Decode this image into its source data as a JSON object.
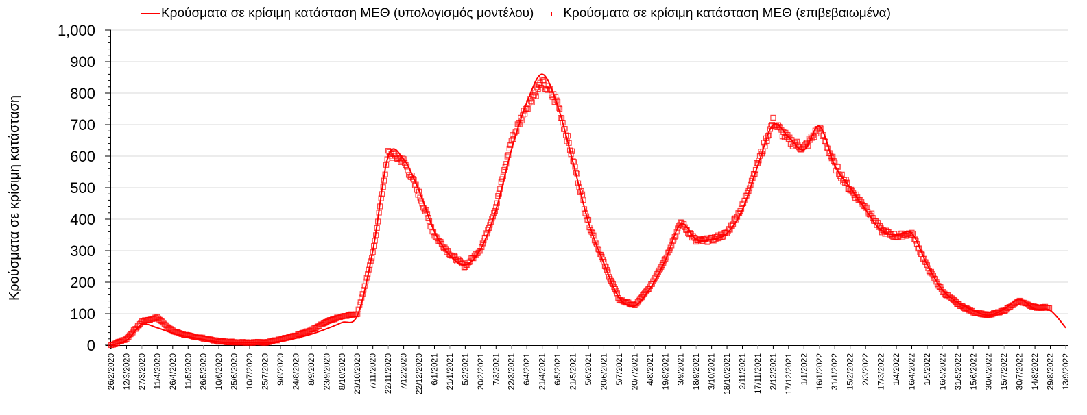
{
  "chart_data": {
    "type": "line",
    "title": "",
    "xlabel": "",
    "ylabel": "Κρούσματα σε κρίσιμη κατάσταση",
    "ylim": [
      0,
      1000
    ],
    "yticks": [
      "0",
      "100",
      "200",
      "300",
      "400",
      "500",
      "600",
      "700",
      "800",
      "900",
      "1,000"
    ],
    "ytick_values": [
      0,
      100,
      200,
      300,
      400,
      500,
      600,
      700,
      800,
      900,
      1000
    ],
    "grid": "horizontal",
    "legend_position": "top",
    "categories": [
      "26/2/2020",
      "12/3/2020",
      "27/3/2020",
      "11/4/2020",
      "26/4/2020",
      "11/5/2020",
      "26/5/2020",
      "10/6/2020",
      "25/6/2020",
      "10/7/2020",
      "25/7/2020",
      "9/8/2020",
      "24/8/2020",
      "8/9/2020",
      "23/9/2020",
      "8/10/2020",
      "23/10/2020",
      "7/11/2020",
      "22/11/2020",
      "7/12/2020",
      "22/12/2020",
      "6/1/2021",
      "21/1/2021",
      "5/2/2021",
      "20/2/2021",
      "7/3/2021",
      "22/3/2021",
      "6/4/2021",
      "21/4/2021",
      "6/5/2021",
      "21/5/2021",
      "5/6/2021",
      "20/6/2021",
      "5/7/2021",
      "20/7/2021",
      "4/8/2021",
      "19/8/2021",
      "3/9/2021",
      "18/9/2021",
      "3/10/2021",
      "18/10/2021",
      "2/11/2021",
      "17/11/2021",
      "2/12/2021",
      "17/12/2021",
      "1/1/2022",
      "16/1/2022",
      "31/1/2022",
      "15/2/2022",
      "2/3/2022",
      "17/3/2022",
      "1/4/2022",
      "16/4/2022",
      "1/5/2022",
      "16/5/2022",
      "31/5/2022",
      "15/6/2022",
      "30/6/2022",
      "15/7/2022",
      "30/7/2022",
      "14/8/2022",
      "29/8/2022",
      "13/9/2022"
    ],
    "series": [
      {
        "name": "Κρούσματα σε κρίσιμη κατάσταση ΜΕΘ (υπολογισμός μοντέλου)",
        "style": "line",
        "color": "#ff0000",
        "values": [
          0,
          15,
          65,
          55,
          38,
          27,
          18,
          10,
          7,
          8,
          7,
          12,
          22,
          35,
          52,
          72,
          95,
          300,
          600,
          590,
          490,
          360,
          285,
          255,
          305,
          430,
          620,
          770,
          860,
          760,
          580,
          390,
          260,
          150,
          125,
          180,
          270,
          385,
          335,
          335,
          355,
          430,
          570,
          700,
          660,
          620,
          695,
          570,
          500,
          430,
          365,
          350,
          355,
          255,
          175,
          135,
          110,
          95,
          115,
          145,
          115,
          110,
          55
        ]
      },
      {
        "name": "Κρούσματα σε κρίσιμη κατάσταση ΜΕΘ (επιβεβαιωμένα)",
        "style": "markers-square",
        "color": "#ff0000",
        "values": [
          0,
          20,
          75,
          88,
          45,
          30,
          22,
          12,
          10,
          9,
          9,
          18,
          30,
          48,
          75,
          92,
          100,
          290,
          610,
          585,
          480,
          350,
          290,
          250,
          305,
          440,
          650,
          760,
          835,
          770,
          590,
          390,
          260,
          145,
          125,
          185,
          275,
          390,
          330,
          335,
          355,
          440,
          580,
          710,
          650,
          625,
          690,
          570,
          495,
          440,
          365,
          345,
          355,
          250,
          170,
          130,
          105,
          95,
          110,
          140,
          120,
          120,
          null
        ]
      }
    ]
  },
  "legend": {
    "model_label": "Κρούσματα σε κρίσιμη κατάσταση ΜΕΘ (υπολογισμός μοντέλου)",
    "confirmed_label": "Κρούσματα σε κρίσιμη κατάσταση ΜΕΘ (επιβεβαιωμένα)"
  },
  "colors": {
    "series": "#ff0000",
    "grid": "#d9d9d9",
    "axis": "#000000"
  }
}
